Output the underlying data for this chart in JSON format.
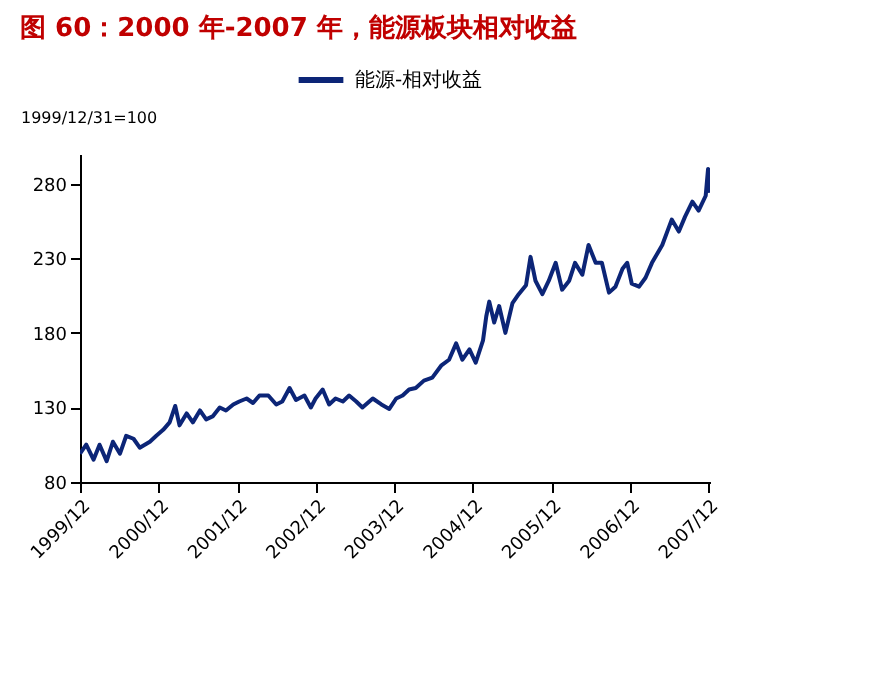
{
  "chart_data": {
    "type": "line",
    "title": "图 60：2000 年-2007 年，能源板块相对收益",
    "ylabel": "1999/12/31=100",
    "x": [
      "1999-12-01",
      "1999-12-30",
      "2000-02-02",
      "2000-03-01",
      "2000-04-03",
      "2000-05-02",
      "2000-06-04",
      "2000-07-03",
      "2000-08-06",
      "2000-09-04",
      "2000-10-21",
      "2000-11-20",
      "2000-12-22",
      "2001-01-21",
      "2001-02-16",
      "2001-03-08",
      "2001-04-10",
      "2001-05-09",
      "2001-06-11",
      "2001-07-10",
      "2001-08-09",
      "2001-09-11",
      "2001-10-10",
      "2001-11-13",
      "2001-12-11",
      "2002-01-14",
      "2002-02-13",
      "2002-03-15",
      "2002-04-25",
      "2002-06-01",
      "2002-06-29",
      "2002-08-02",
      "2002-09-01",
      "2002-10-10",
      "2002-11-09",
      "2002-12-01",
      "2003-01-03",
      "2003-02-02",
      "2003-03-04",
      "2003-04-07",
      "2003-05-06",
      "2003-06-08",
      "2003-07-07",
      "2003-08-24",
      "2003-10-03",
      "2003-11-09",
      "2003-12-11",
      "2004-01-10",
      "2004-02-09",
      "2004-03-11",
      "2004-04-18",
      "2004-05-27",
      "2004-07-07",
      "2004-08-13",
      "2004-09-15",
      "2004-10-14",
      "2004-11-16",
      "2004-12-15",
      "2005-01-18",
      "2005-02-02",
      "2005-02-16",
      "2005-03-11",
      "2005-04-03",
      "2005-05-02",
      "2005-06-04",
      "2005-07-03",
      "2005-08-06",
      "2005-08-27",
      "2005-09-19",
      "2005-10-21",
      "2005-11-20",
      "2005-12-22",
      "2006-01-21",
      "2006-02-23",
      "2006-03-22",
      "2006-04-25",
      "2006-05-24",
      "2006-06-26",
      "2006-07-25",
      "2006-08-27",
      "2006-09-26",
      "2006-10-29",
      "2006-11-20",
      "2006-12-11",
      "2007-01-14",
      "2007-02-13",
      "2007-03-15",
      "2007-05-02",
      "2007-06-15",
      "2007-07-18",
      "2007-08-16",
      "2007-09-19",
      "2007-10-18",
      "2007-11-20",
      "2007-12-01",
      "2007-12-08"
    ],
    "series": [
      {
        "name": "能源-相对收益",
        "color": "#0c2577",
        "values": [
          99,
          105,
          95,
          105,
          94,
          107,
          99,
          111,
          109,
          103,
          107,
          111,
          115,
          120,
          131,
          118,
          126,
          120,
          128,
          122,
          124,
          130,
          128,
          132,
          134,
          136,
          133,
          138,
          138,
          132,
          134,
          143,
          135,
          138,
          130,
          136,
          142,
          132,
          136,
          134,
          138,
          134,
          130,
          136,
          132,
          129,
          136,
          138,
          142,
          143,
          148,
          150,
          158,
          162,
          173,
          162,
          169,
          160,
          175,
          191,
          201,
          187,
          198,
          180,
          200,
          206,
          212,
          231,
          215,
          206,
          215,
          227,
          209,
          215,
          227,
          219,
          239,
          227,
          227,
          207,
          211,
          223,
          227,
          213,
          211,
          217,
          227,
          239,
          256,
          248,
          258,
          268,
          262,
          272,
          290,
          274
        ]
      }
    ],
    "xlim": [
      "1999-12-01",
      "2007-12-10"
    ],
    "xticks": [
      {
        "value": "1999-12",
        "label": "1999/12"
      },
      {
        "value": "2000-12",
        "label": "2000/12"
      },
      {
        "value": "2001-12",
        "label": "2001/12"
      },
      {
        "value": "2002-12",
        "label": "2002/12"
      },
      {
        "value": "2003-12",
        "label": "2003/12"
      },
      {
        "value": "2004-12",
        "label": "2004/12"
      },
      {
        "value": "2005-12",
        "label": "2005/12"
      },
      {
        "value": "2006-12",
        "label": "2006/12"
      },
      {
        "value": "2007-12",
        "label": "2007/12"
      }
    ],
    "ylim": [
      80,
      300
    ],
    "yticks": [
      80,
      130,
      180,
      230,
      280
    ],
    "grid": false,
    "legend": "top",
    "marker": "none",
    "line_style": "solid"
  }
}
